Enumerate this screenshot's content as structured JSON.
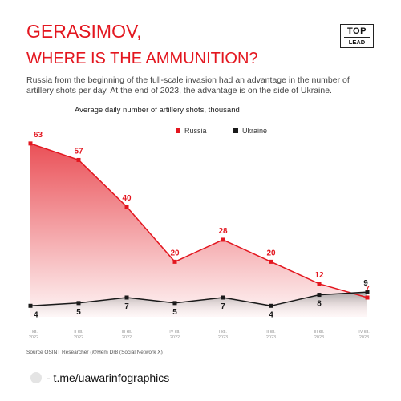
{
  "header": {
    "title_line1": "GERASIMOV,",
    "title_line2": "WHERE IS THE AMMUNITION?",
    "subtitle": "Russia from the beginning of the full-scale invasion had an advantage in the number of artillery shots per day. At the end of 2023, the advantage is on the side of Ukraine.",
    "logo_line1": "TOP",
    "logo_line2": "LEAD"
  },
  "chart_data": {
    "type": "area",
    "title": "Average daily number of artillery shots, thousand",
    "categories": [
      [
        "I кв.",
        "2022"
      ],
      [
        "II кв.",
        "2022"
      ],
      [
        "III кв.",
        "2022"
      ],
      [
        "IV кв.",
        "2022"
      ],
      [
        "I кв.",
        "2023"
      ],
      [
        "II кв.",
        "2023"
      ],
      [
        "III кв.",
        "2023"
      ],
      [
        "IV кв.",
        "2023"
      ]
    ],
    "series": [
      {
        "name": "Russia",
        "values": [
          63,
          57,
          40,
          20,
          28,
          20,
          12,
          7
        ],
        "color": "#e3161f"
      },
      {
        "name": "Ukraine",
        "values": [
          4,
          5,
          7,
          5,
          7,
          4,
          8,
          9
        ],
        "color": "#1a1a1a"
      }
    ],
    "ylim": [
      0,
      65
    ],
    "grid": false,
    "legend": "top-center"
  },
  "footer": {
    "source": "Source OSINT Researcher (@Hem Dr8 (Social Network X)",
    "link": "- t.me/uawarinfographics"
  }
}
